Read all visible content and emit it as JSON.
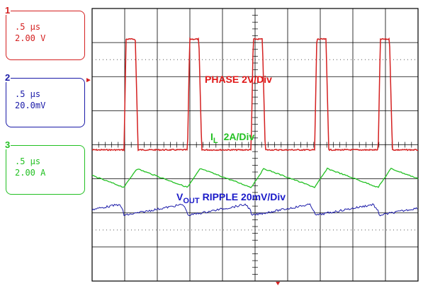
{
  "channels": [
    {
      "num": "1",
      "time": ".5 μs",
      "scale": "2.00 V",
      "color": "#d42020"
    },
    {
      "num": "2",
      "time": ".5 μs",
      "scale": "20.0mV",
      "color": "#1a1aa8"
    },
    {
      "num": "3",
      "time": ".5 μs",
      "scale": "2.00 A",
      "color": "#22c022"
    }
  ],
  "labels": {
    "phase": "PHASE 2V/Div",
    "il_main": "I",
    "il_sub": "L",
    "il_rest": "2A/Div",
    "vout_main": "V",
    "vout_sub": "OUT",
    "vout_rest": "RIPPLE  20mV/Div"
  },
  "chart_data": {
    "type": "line",
    "grid": {
      "x_divisions": 10,
      "y_divisions": 8
    },
    "period_div": 1.95,
    "series": [
      {
        "name": "PHASE 2V/Div",
        "color": "#d42020",
        "shape": "square",
        "high_div": 0.9,
        "low_div": 4.15,
        "duty": 0.2
      },
      {
        "name": "I_L 2A/Div",
        "color": "#22c022",
        "shape": "triangle",
        "peak_div": 4.7,
        "valley_div": 5.25
      },
      {
        "name": "V_OUT RIPPLE 20mV/Div",
        "color": "#1a1aa8",
        "shape": "sawtooth",
        "center_div": 5.9,
        "pp_div": 0.35
      }
    ]
  }
}
